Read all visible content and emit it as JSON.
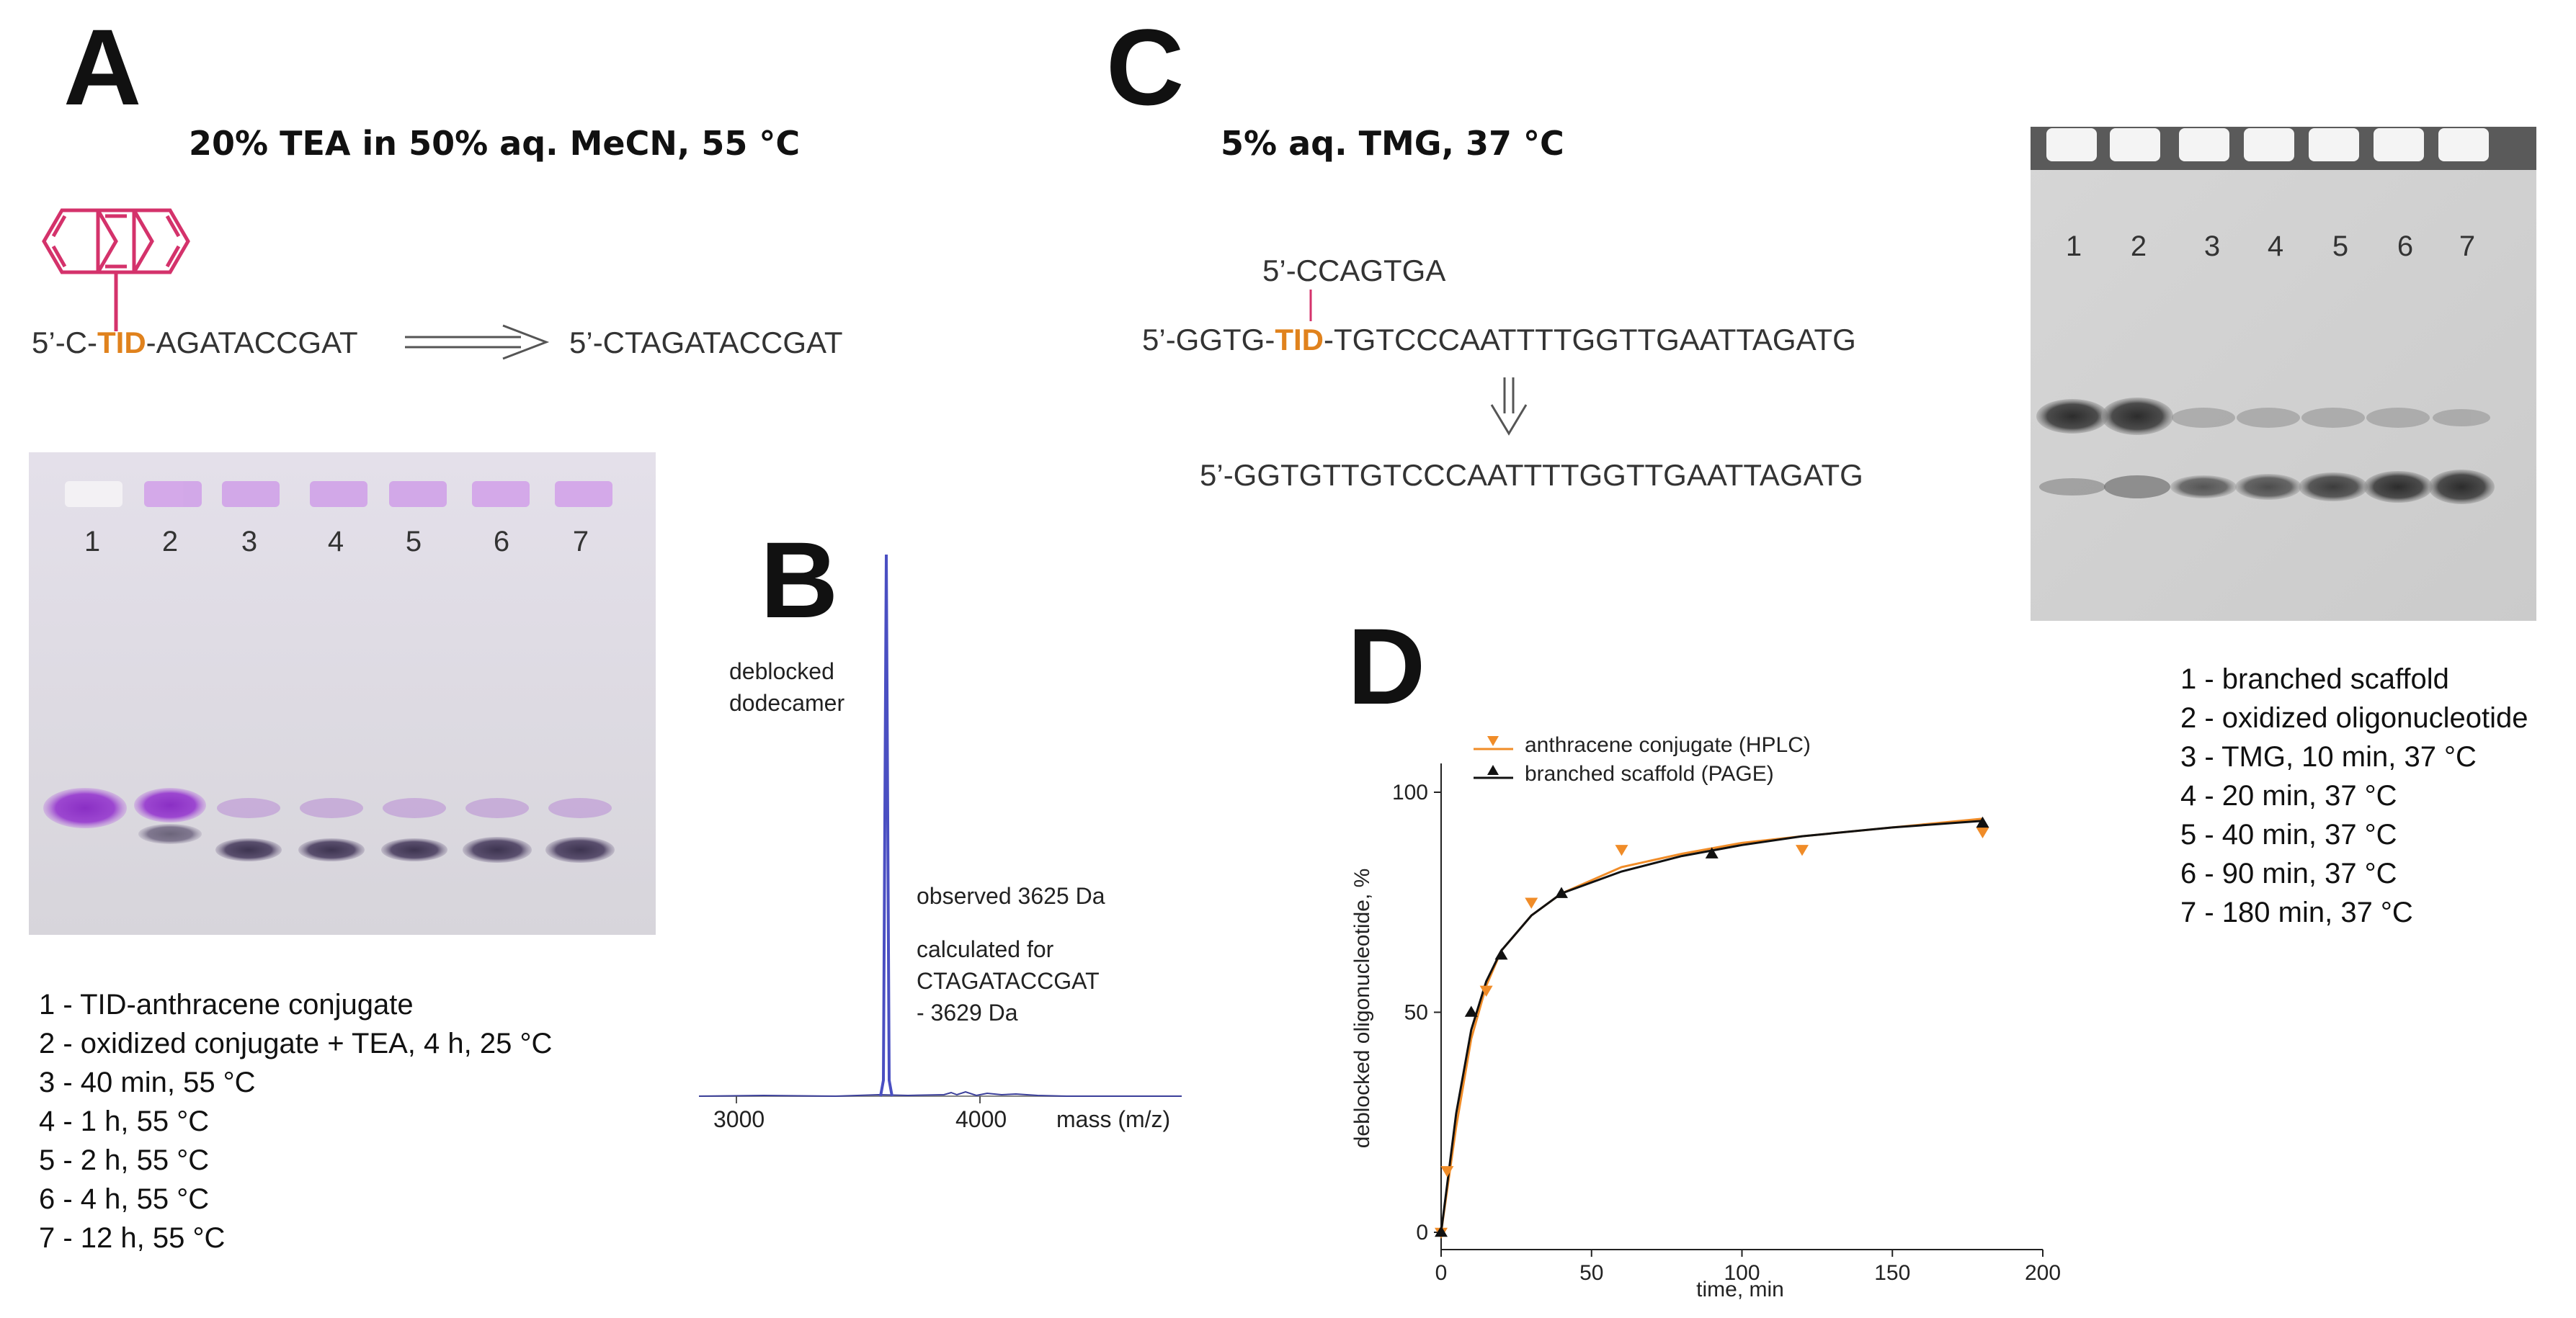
{
  "panel_a": {
    "letter": "A",
    "condition": "20% TEA in 50% aq. MeCN, 55 °C",
    "reactant_prefix": "5’-C-",
    "reactant_tid": "TID",
    "reactant_suffix": "-AGATACCGAT",
    "product": "5’-CTAGATACCGAT",
    "lanes": [
      "1",
      "2",
      "3",
      "4",
      "5",
      "6",
      "7"
    ],
    "legend": [
      "1 - TID-anthracene conjugate",
      "2 - oxidized conjugate + TEA, 4 h, 25 °C",
      "3 - 40 min, 55 °C",
      "4 - 1 h, 55 °C",
      "5 - 2 h, 55 °C",
      "6 - 4 h, 55 °C",
      "7 - 12 h, 55 °C"
    ],
    "anthracene_color": "#d4326b"
  },
  "panel_b": {
    "letter": "B",
    "peak_label_line1": "deblocked",
    "peak_label_line2": "dodecamer",
    "observed": "observed 3625 Da",
    "calc_line1": "calculated for",
    "calc_line2": "CTAGATACCGAT",
    "calc_line3": "- 3629 Da",
    "x_ticks": [
      "3000",
      "4000"
    ],
    "x_label": "mass (m/z)"
  },
  "panel_c": {
    "letter": "C",
    "condition": "5% aq. TMG, 37 °C",
    "branch": "5’-CCAGTGA",
    "scaffold_prefix": "5’-GGTG-",
    "scaffold_tid": "TID",
    "scaffold_suffix": "-TGTCCCAATTTTGGTTGAATTAGATG",
    "product": "5’-GGTGTTGTCCCAATTTTGGTTGAATTAGATG",
    "lanes": [
      "1",
      "2",
      "3",
      "4",
      "5",
      "6",
      "7"
    ],
    "legend": [
      "1 - branched scaffold",
      "2 - oxidized oligonucleotide",
      "3 - TMG, 10 min, 37 °C",
      "4 - 20 min, 37 °C",
      "5 - 40 min, 37 °C",
      "6 - 90 min, 37 °C",
      "7 - 180 min, 37 °C"
    ]
  },
  "panel_d": {
    "letter": "D"
  },
  "chart_data": {
    "type": "scatter",
    "title": "",
    "xlabel": "time, min",
    "ylabel": "deblocked oligonucleotide, %",
    "xlim": [
      0,
      200
    ],
    "ylim": [
      0,
      100
    ],
    "x_ticks": [
      0,
      50,
      100,
      150,
      200
    ],
    "y_ticks": [
      0,
      50,
      100
    ],
    "legend_position": "top-left",
    "series": [
      {
        "name": "anthracene conjugate (HPLC)",
        "color": "#f08c28",
        "marker": "triangle-down",
        "points": [
          [
            0,
            0
          ],
          [
            2,
            14
          ],
          [
            15,
            55
          ],
          [
            30,
            75
          ],
          [
            60,
            87
          ],
          [
            120,
            87
          ],
          [
            180,
            91
          ]
        ],
        "fit": [
          [
            0,
            0
          ],
          [
            5,
            24
          ],
          [
            10,
            44
          ],
          [
            15,
            56
          ],
          [
            20,
            64
          ],
          [
            30,
            72
          ],
          [
            40,
            77
          ],
          [
            60,
            83
          ],
          [
            80,
            86
          ],
          [
            100,
            88.5
          ],
          [
            120,
            90
          ],
          [
            150,
            92
          ],
          [
            180,
            94
          ]
        ]
      },
      {
        "name": "branched scaffold (PAGE)",
        "color": "#111111",
        "marker": "triangle-up",
        "points": [
          [
            0,
            0
          ],
          [
            10,
            50
          ],
          [
            20,
            63
          ],
          [
            40,
            77
          ],
          [
            90,
            86
          ],
          [
            180,
            93
          ]
        ],
        "fit": [
          [
            0,
            0
          ],
          [
            5,
            27
          ],
          [
            10,
            46
          ],
          [
            15,
            57
          ],
          [
            20,
            64
          ],
          [
            30,
            72
          ],
          [
            40,
            77
          ],
          [
            60,
            82
          ],
          [
            80,
            85.5
          ],
          [
            100,
            88
          ],
          [
            120,
            90
          ],
          [
            150,
            92
          ],
          [
            180,
            93.5
          ]
        ]
      }
    ]
  }
}
